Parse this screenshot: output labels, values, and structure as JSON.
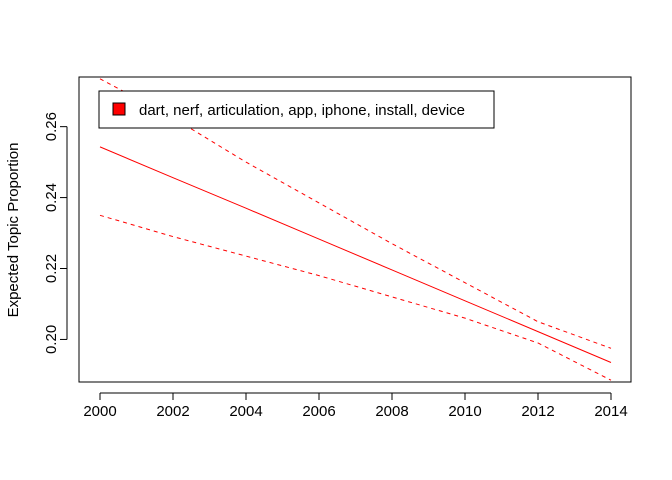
{
  "chart_data": {
    "type": "line",
    "title": "",
    "xlabel": "",
    "ylabel": "Expected Topic Proportion",
    "xlim": [
      2000,
      2014
    ],
    "ylim": [
      0.188,
      0.274
    ],
    "xticks": [
      "2000",
      "2002",
      "2004",
      "2006",
      "2008",
      "2010",
      "2012",
      "2014"
    ],
    "yticks": [
      "0.20",
      "0.22",
      "0.24",
      "0.26"
    ],
    "grid": false,
    "legend": {
      "position": "top-left",
      "label": "dart, nerf, articulation, app, iphone, install, device",
      "color": "#ff0000"
    },
    "x": [
      2000,
      2002,
      2004,
      2006,
      2008,
      2010,
      2012,
      2014
    ],
    "series": [
      {
        "name": "dart, nerf, articulation, app, iphone, install, device",
        "role": "estimate",
        "style": "solid",
        "color": "#ff0000",
        "values": [
          0.2543,
          0.2456,
          0.237,
          0.2283,
          0.2196,
          0.2109,
          0.2022,
          0.1935
        ]
      },
      {
        "role": "upper-ci",
        "style": "dashed",
        "color": "#ff0000",
        "values": [
          0.2735,
          0.2625,
          0.25,
          0.2385,
          0.227,
          0.216,
          0.205,
          0.1975
        ]
      },
      {
        "role": "lower-ci",
        "style": "dashed",
        "color": "#ff0000",
        "values": [
          0.235,
          0.229,
          0.2235,
          0.218,
          0.212,
          0.206,
          0.199,
          0.1885
        ]
      }
    ]
  }
}
